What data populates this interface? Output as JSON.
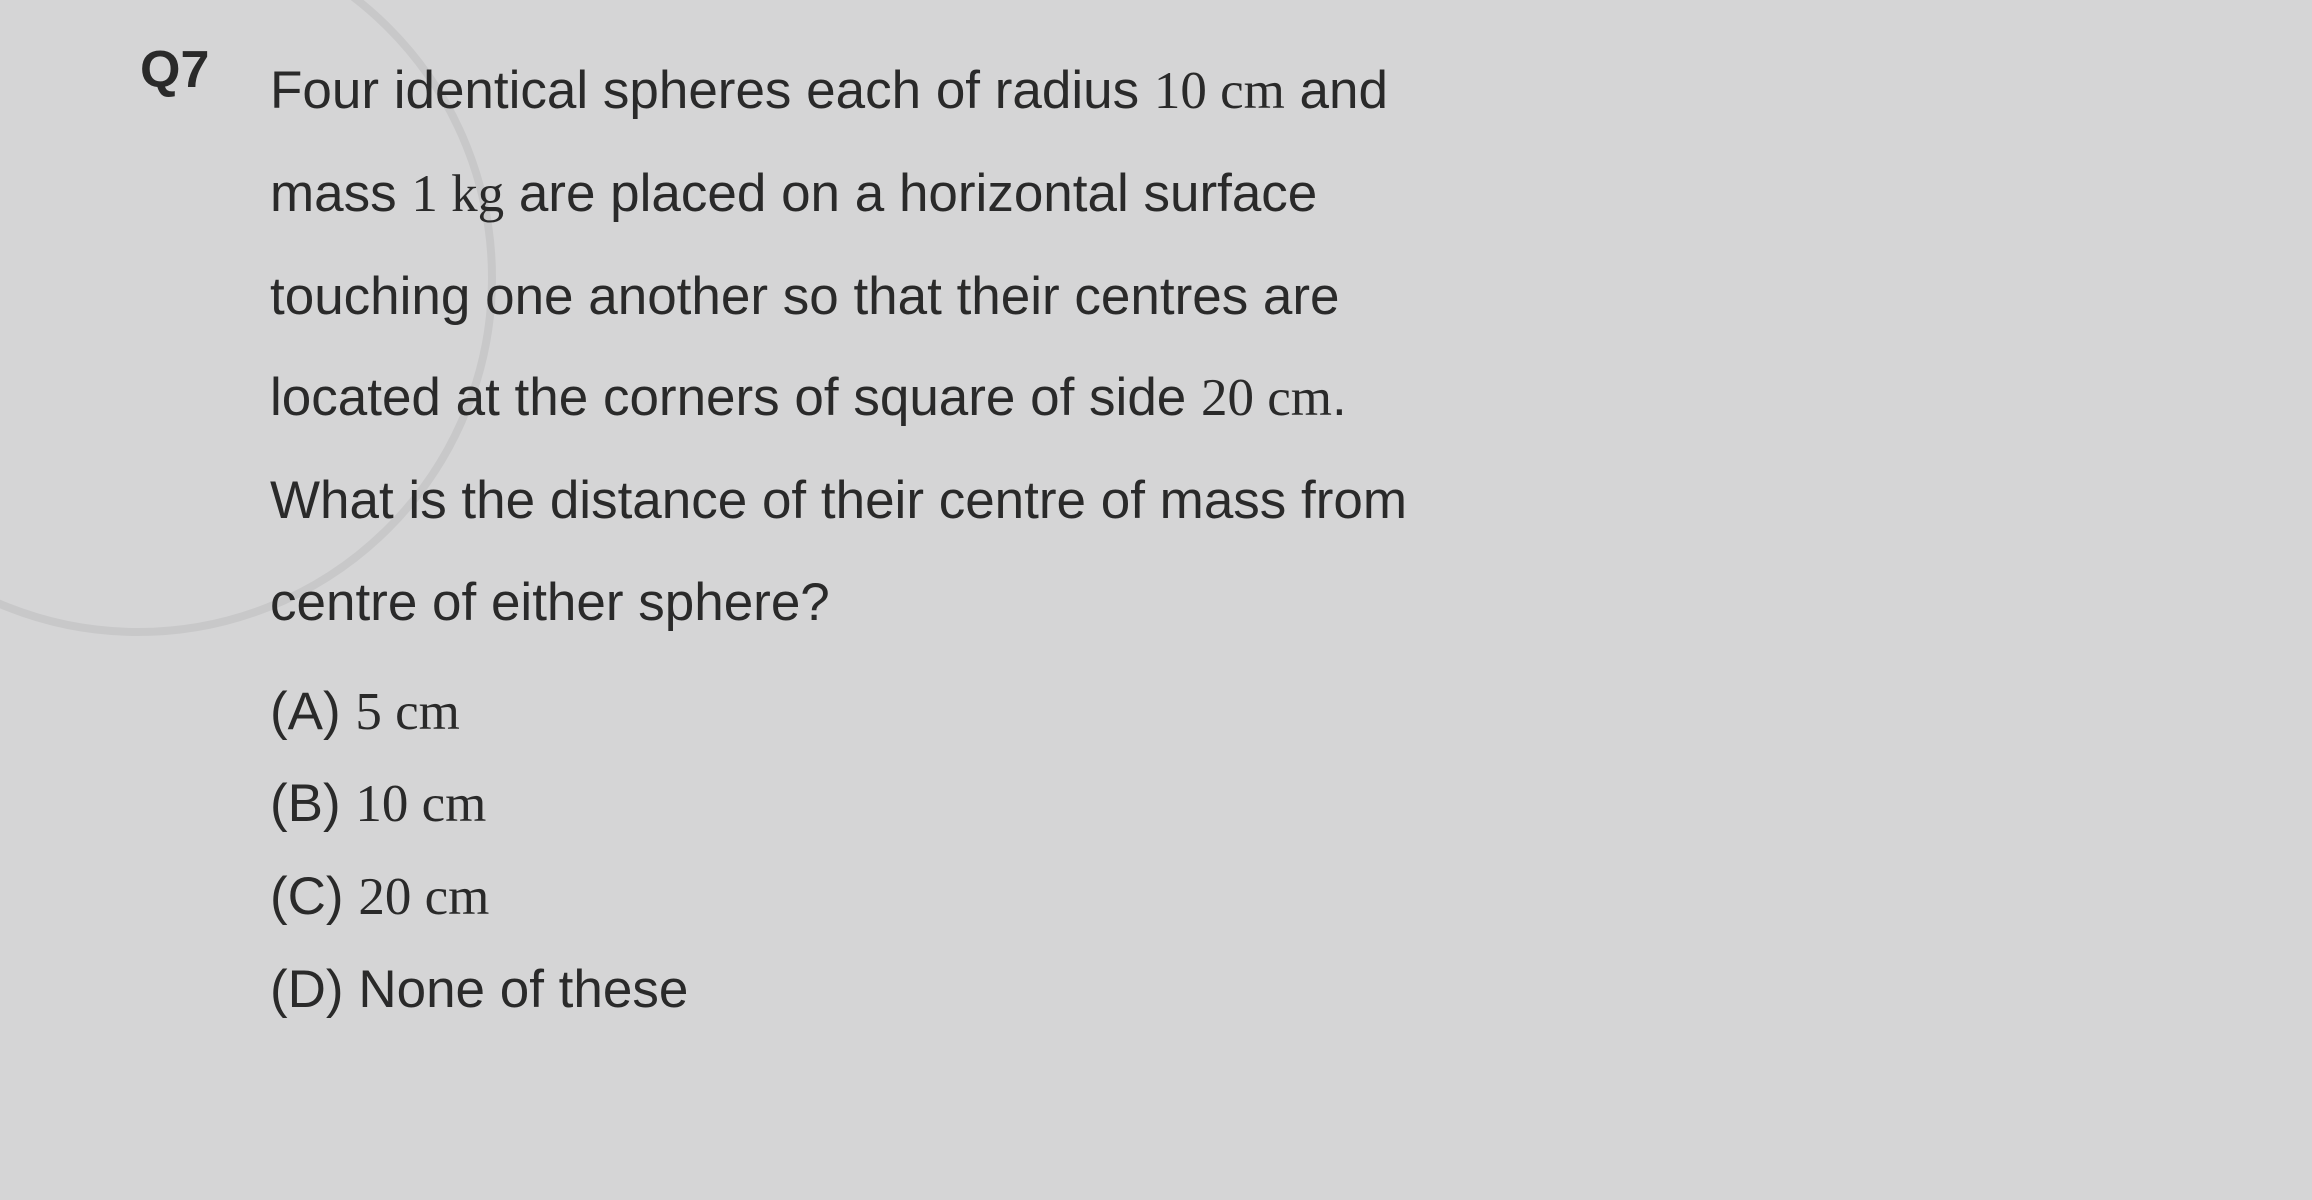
{
  "background_color": "#d5d5d6",
  "text_color": "#2a2a2a",
  "font_size_body": 53,
  "font_size_qnum": 52,
  "line_height": 1.92,
  "question": {
    "number": "Q7",
    "text_line1": "Four identical spheres each of radius ",
    "val1": "10 cm",
    "text_line1_tail": " and",
    "text_line2a": "mass ",
    "val2": "1 kg",
    "text_line2b": " are placed on a horizontal surface",
    "text_line3": "touching one another so that their centres are",
    "text_line4a": "located at the corners of square of side ",
    "val3": "20 cm",
    "text_line4b": ".",
    "text_line5": "What is the distance of their centre of mass from",
    "text_line6": "centre of either sphere?",
    "options": {
      "A": {
        "label": "(A) ",
        "value": "5 cm"
      },
      "B": {
        "label": "(B) ",
        "value": "10 cm"
      },
      "C": {
        "label": "(C) ",
        "value": "20 cm"
      },
      "D": {
        "label": "(D) ",
        "value": "None of these"
      }
    }
  }
}
